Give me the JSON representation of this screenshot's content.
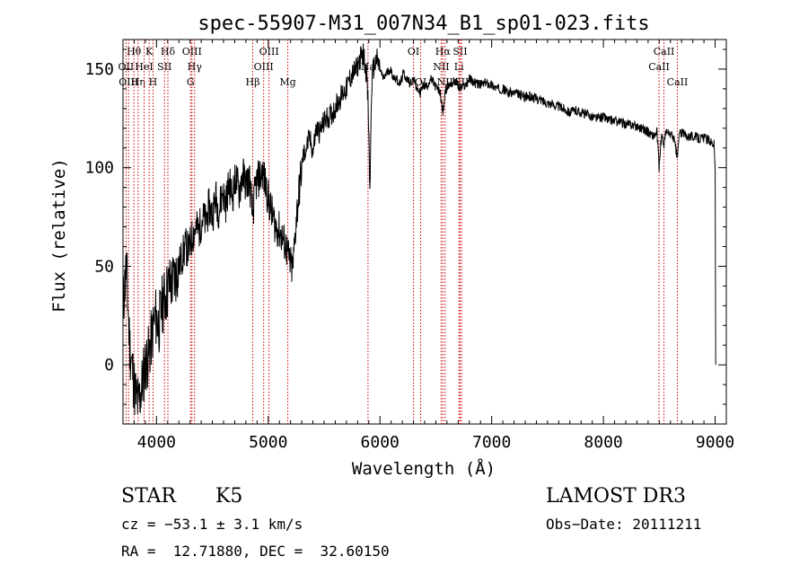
{
  "chart_data": {
    "type": "line",
    "title": "spec-55907-M31_007N34_B1_sp01-023.fits",
    "xlabel": "Wavelength (Å)",
    "ylabel": "Flux (relative)",
    "xlim": [
      3700,
      9100
    ],
    "ylim": [
      -30,
      165
    ],
    "xticks": [
      4000,
      5000,
      6000,
      7000,
      8000,
      9000
    ],
    "yticks": [
      0,
      50,
      100,
      150
    ],
    "grid": false,
    "line_color": "#000000",
    "marker_color": "#cc0000",
    "series": [
      {
        "x": [
          3700,
          3730,
          3760,
          3790,
          3810,
          3840,
          3870,
          3900,
          3930,
          3960,
          3990,
          4020,
          4050,
          4080,
          4110,
          4140,
          4170,
          4200,
          4230,
          4260,
          4290,
          4320,
          4350,
          4380,
          4410,
          4440,
          4470,
          4500,
          4530,
          4560,
          4590,
          4620,
          4650,
          4680,
          4710,
          4740,
          4770,
          4800,
          4830,
          4860,
          4890,
          4920,
          4950,
          4980,
          5010,
          5040,
          5070,
          5100,
          5130,
          5160,
          5190,
          5220,
          5250,
          5280,
          5310,
          5340,
          5370,
          5400,
          5430,
          5460,
          5490,
          5520,
          5550,
          5580,
          5610,
          5640,
          5670,
          5700,
          5730,
          5760,
          5790,
          5820,
          5850,
          5880,
          5895,
          5910,
          5925,
          5940,
          5970,
          6000,
          6030,
          6060,
          6090,
          6120,
          6150,
          6180,
          6210,
          6240,
          6270,
          6300,
          6330,
          6360,
          6390,
          6420,
          6450,
          6480,
          6510,
          6540,
          6563,
          6590,
          6620,
          6650,
          6680,
          6710,
          6740,
          6770,
          6800,
          6850,
          6900,
          6950,
          7000,
          7050,
          7100,
          7150,
          7200,
          7250,
          7300,
          7350,
          7400,
          7450,
          7500,
          7550,
          7600,
          7650,
          7700,
          7750,
          7800,
          7850,
          7900,
          7950,
          8000,
          8050,
          8100,
          8150,
          8200,
          8250,
          8300,
          8350,
          8400,
          8450,
          8480,
          8498,
          8520,
          8542,
          8560,
          8600,
          8630,
          8662,
          8680,
          8720,
          8760,
          8800,
          8850,
          8900,
          8950,
          8990,
          9000,
          9005
        ],
        "values": [
          30,
          50,
          10,
          -5,
          -15,
          -20,
          -10,
          0,
          5,
          15,
          25,
          20,
          30,
          35,
          40,
          42,
          45,
          50,
          55,
          60,
          58,
          65,
          70,
          68,
          75,
          72,
          80,
          76,
          85,
          78,
          88,
          82,
          92,
          86,
          95,
          88,
          97,
          92,
          95,
          76,
          92,
          95,
          98,
          90,
          82,
          75,
          70,
          68,
          64,
          60,
          52,
          48,
          74,
          90,
          105,
          110,
          115,
          108,
          120,
          118,
          122,
          125,
          126,
          128,
          132,
          135,
          138,
          140,
          145,
          148,
          150,
          155,
          158,
          148,
          130,
          88,
          140,
          150,
          155,
          150,
          145,
          148,
          150,
          146,
          145,
          142,
          148,
          145,
          143,
          145,
          140,
          138,
          142,
          141,
          145,
          143,
          140,
          138,
          128,
          140,
          142,
          143,
          144,
          140,
          141,
          142,
          145,
          143,
          142,
          143,
          142,
          140,
          140,
          138,
          138,
          137,
          136,
          136,
          135,
          134,
          133,
          132,
          131,
          130,
          128,
          129,
          128,
          127,
          126,
          125,
          126,
          124,
          124,
          123,
          122,
          122,
          121,
          120,
          118,
          116,
          118,
          100,
          116,
          112,
          118,
          117,
          115,
          105,
          118,
          117,
          116,
          116,
          115,
          115,
          114,
          112,
          100,
          0
        ]
      }
    ],
    "lines": [
      {
        "name": "Hθ",
        "wl": 3798,
        "row": 1
      },
      {
        "name": "OII",
        "wl": 3727,
        "row": 2
      },
      {
        "name": "OIII",
        "wl": 3750,
        "row": 3
      },
      {
        "name": "Hη",
        "wl": 3835,
        "row": 3
      },
      {
        "name": "HeI",
        "wl": 3889,
        "row": 2
      },
      {
        "name": "K",
        "wl": 3934,
        "row": 1
      },
      {
        "name": "H",
        "wl": 3969,
        "row": 3
      },
      {
        "name": "SII",
        "wl": 4072,
        "row": 2
      },
      {
        "name": "Hδ",
        "wl": 4102,
        "row": 1
      },
      {
        "name": "OIII",
        "wl": 4317,
        "row": 1
      },
      {
        "name": "Hγ",
        "wl": 4341,
        "row": 2
      },
      {
        "name": "G",
        "wl": 4305,
        "row": 3
      },
      {
        "name": "Hβ",
        "wl": 4861,
        "row": 3
      },
      {
        "name": "OIII",
        "wl": 4959,
        "row": 2
      },
      {
        "name": "OIII",
        "wl": 5007,
        "row": 1
      },
      {
        "name": "Mg",
        "wl": 5175,
        "row": 3
      },
      {
        "name": "Na",
        "wl": 5893,
        "row": 2
      },
      {
        "name": "OI",
        "wl": 6300,
        "row": 1
      },
      {
        "name": "OI",
        "wl": 6364,
        "row": 3
      },
      {
        "name": "Hα",
        "wl": 6563,
        "row": 1
      },
      {
        "name": "NII",
        "wl": 6548,
        "row": 2
      },
      {
        "name": "NII",
        "wl": 6583,
        "row": 3
      },
      {
        "name": "SII",
        "wl": 6717,
        "row": 1
      },
      {
        "name": "Li",
        "wl": 6707,
        "row": 2
      },
      {
        "name": "SII",
        "wl": 6731,
        "row": 3
      },
      {
        "name": "CaII",
        "wl": 8542,
        "row": 1
      },
      {
        "name": "CaII",
        "wl": 8498,
        "row": 2
      },
      {
        "name": "CaII",
        "wl": 8662,
        "row": 3
      }
    ]
  },
  "info": {
    "class": "STAR",
    "subclass": "K5",
    "survey": "LAMOST DR3",
    "cz": "cz = −53.1 ± 3.1 km/s",
    "obs_date": "Obs−Date: 20111211",
    "coords": "RA =  12.71880, DEC =  32.60150"
  }
}
